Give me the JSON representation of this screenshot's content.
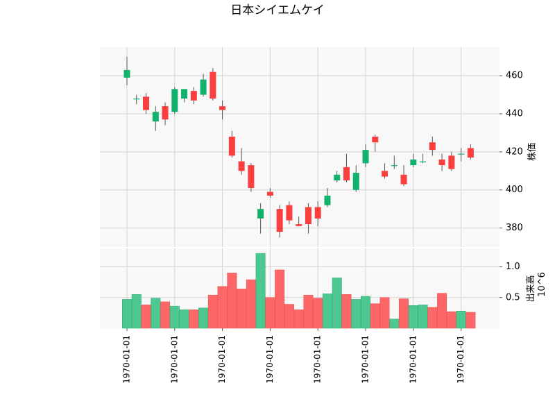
{
  "chart_data": {
    "type": "candlestick",
    "title": "日本シイエムケイ",
    "price_panel": {
      "ylabel": "株価",
      "ylim": [
        370,
        475
      ],
      "yticks": [
        380,
        400,
        420,
        440,
        460
      ]
    },
    "volume_panel": {
      "ylabel": "出来高",
      "scale_label": "10^6",
      "ylim": [
        0.0,
        1.3
      ],
      "yticks": [
        0.5,
        1.0
      ],
      "ytick_labels": [
        "0.5",
        "1.0"
      ]
    },
    "x_tick_labels": [
      "1970-01-01",
      "1970-01-01",
      "1970-01-01",
      "1970-01-01",
      "1970-01-01",
      "1970-01-01",
      "1970-01-01",
      "1970-01-01"
    ],
    "x_tick_positions": [
      0,
      5,
      10,
      15,
      20,
      25,
      30,
      35
    ],
    "colors": {
      "up": "#10b26d",
      "down": "#fb3f3f",
      "up_volume": "#4cc890",
      "down_volume": "#fd6767",
      "wick": "#555555"
    },
    "candles": [
      {
        "o": 459,
        "h": 470,
        "l": 455,
        "c": 463,
        "v": 0.47
      },
      {
        "o": 448,
        "h": 450,
        "l": 445,
        "c": 448,
        "v": 0.55
      },
      {
        "o": 449,
        "h": 451,
        "l": 440,
        "c": 442,
        "v": 0.38
      },
      {
        "o": 436,
        "h": 444,
        "l": 431,
        "c": 441,
        "v": 0.49
      },
      {
        "o": 444,
        "h": 446,
        "l": 434,
        "c": 437,
        "v": 0.43
      },
      {
        "o": 441,
        "h": 454,
        "l": 440,
        "c": 453,
        "v": 0.36
      },
      {
        "o": 448,
        "h": 453,
        "l": 446,
        "c": 453,
        "v": 0.3
      },
      {
        "o": 452,
        "h": 454,
        "l": 445,
        "c": 447,
        "v": 0.3
      },
      {
        "o": 450,
        "h": 461,
        "l": 449,
        "c": 458,
        "v": 0.33
      },
      {
        "o": 462,
        "h": 464,
        "l": 447,
        "c": 448,
        "v": 0.54
      },
      {
        "o": 444,
        "h": 447,
        "l": 437,
        "c": 442,
        "v": 0.68
      },
      {
        "o": 428,
        "h": 431,
        "l": 417,
        "c": 418,
        "v": 0.9
      },
      {
        "o": 415,
        "h": 422,
        "l": 408,
        "c": 410,
        "v": 0.64
      },
      {
        "o": 413,
        "h": 414,
        "l": 399,
        "c": 401,
        "v": 0.79
      },
      {
        "o": 385,
        "h": 393,
        "l": 377,
        "c": 390,
        "v": 1.22
      },
      {
        "o": 399,
        "h": 401,
        "l": 396,
        "c": 397,
        "v": 0.5
      },
      {
        "o": 390,
        "h": 392,
        "l": 375,
        "c": 378,
        "v": 0.95
      },
      {
        "o": 392,
        "h": 394,
        "l": 382,
        "c": 384,
        "v": 0.39
      },
      {
        "o": 382,
        "h": 386,
        "l": 381,
        "c": 381,
        "v": 0.3
      },
      {
        "o": 391,
        "h": 393,
        "l": 377,
        "c": 382,
        "v": 0.54
      },
      {
        "o": 391,
        "h": 394,
        "l": 381,
        "c": 385,
        "v": 0.49
      },
      {
        "o": 392,
        "h": 401,
        "l": 391,
        "c": 397,
        "v": 0.56
      },
      {
        "o": 405,
        "h": 410,
        "l": 404,
        "c": 408,
        "v": 0.82
      },
      {
        "o": 412,
        "h": 419,
        "l": 404,
        "c": 405,
        "v": 0.55
      },
      {
        "o": 400,
        "h": 413,
        "l": 399,
        "c": 409,
        "v": 0.47
      },
      {
        "o": 414,
        "h": 424,
        "l": 412,
        "c": 421,
        "v": 0.52
      },
      {
        "o": 428,
        "h": 429,
        "l": 420,
        "c": 425,
        "v": 0.4
      },
      {
        "o": 410,
        "h": 414,
        "l": 406,
        "c": 407,
        "v": 0.5
      },
      {
        "o": 413,
        "h": 418,
        "l": 411,
        "c": 413,
        "v": 0.15
      },
      {
        "o": 408,
        "h": 413,
        "l": 402,
        "c": 403,
        "v": 0.48
      },
      {
        "o": 413,
        "h": 419,
        "l": 412,
        "c": 416,
        "v": 0.37
      },
      {
        "o": 415,
        "h": 419,
        "l": 414,
        "c": 415,
        "v": 0.38
      },
      {
        "o": 425,
        "h": 428,
        "l": 418,
        "c": 421,
        "v": 0.34
      },
      {
        "o": 416,
        "h": 419,
        "l": 410,
        "c": 413,
        "v": 0.57
      },
      {
        "o": 418,
        "h": 420,
        "l": 410,
        "c": 411,
        "v": 0.27
      },
      {
        "o": 419,
        "h": 422,
        "l": 415,
        "c": 419,
        "v": 0.28
      },
      {
        "o": 422,
        "h": 424,
        "l": 416,
        "c": 417,
        "v": 0.26
      }
    ]
  }
}
